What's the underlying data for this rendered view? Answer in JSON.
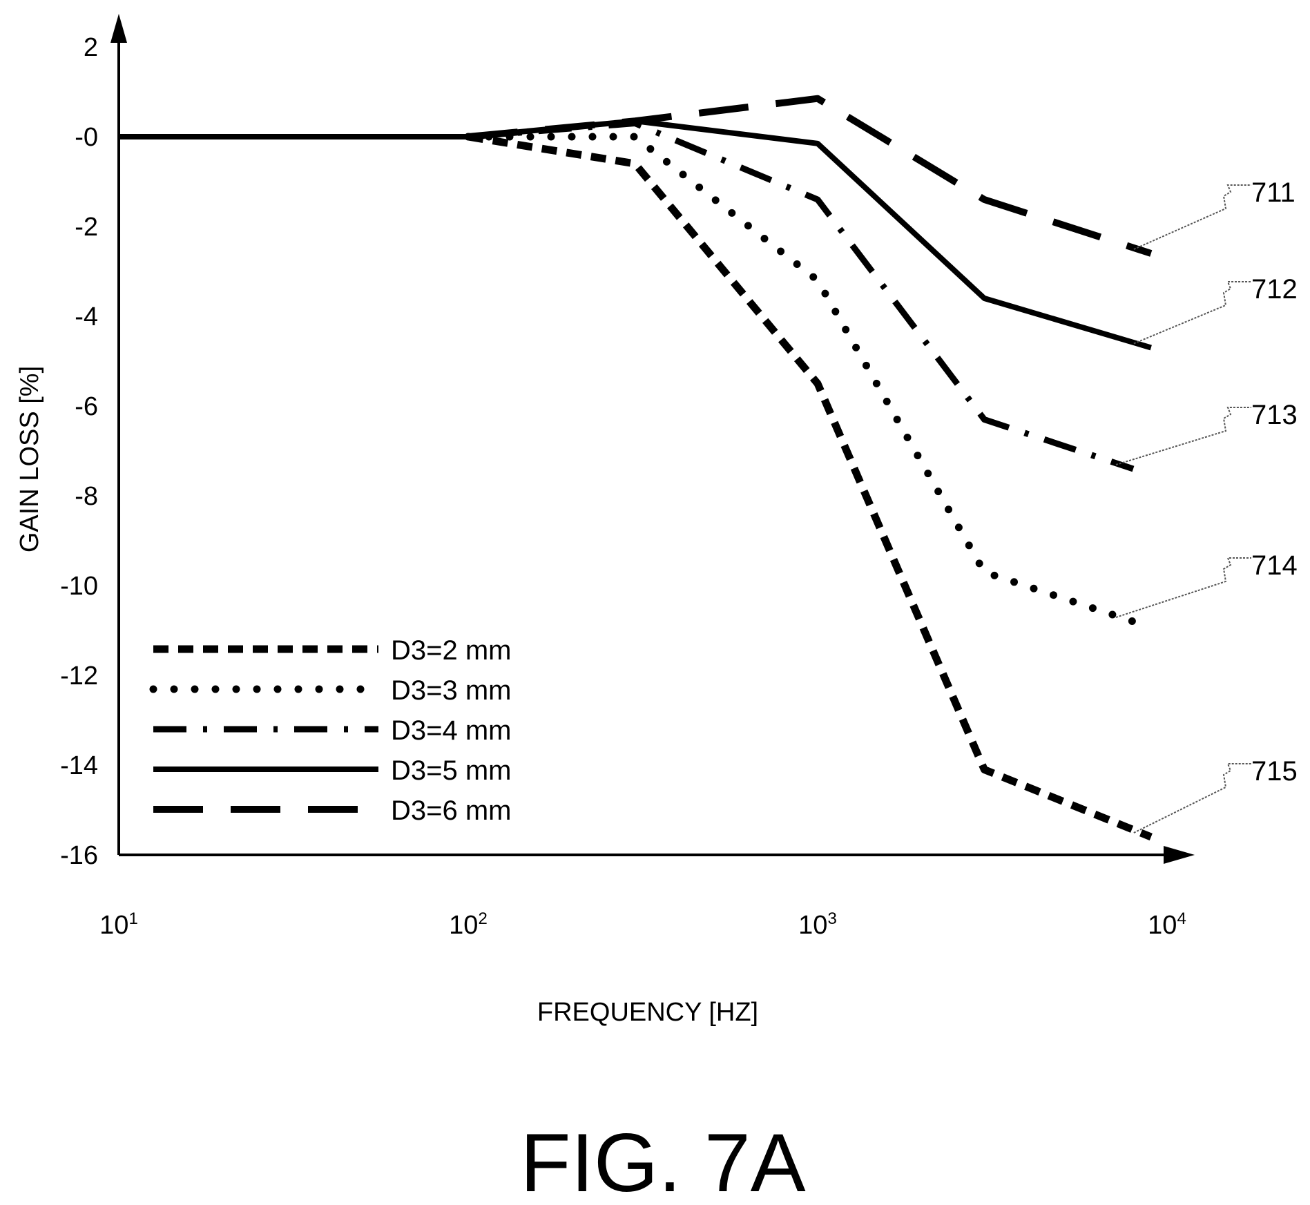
{
  "figure_label": "FIG. 7A",
  "chart_data": {
    "type": "line",
    "title": "",
    "xlabel": "FREQUENCY [HZ]",
    "ylabel": "GAIN LOSS [%]",
    "x_scale": "log",
    "xlim": [
      10,
      10000
    ],
    "ylim": [
      -16,
      2
    ],
    "x_ticks": [
      {
        "base": "10",
        "exp": "1"
      },
      {
        "base": "10",
        "exp": "2"
      },
      {
        "base": "10",
        "exp": "3"
      },
      {
        "base": "10",
        "exp": "4"
      }
    ],
    "y_ticks": [
      "2",
      "-0",
      "-2",
      "-4",
      "-6",
      "-8",
      "-10",
      "-12",
      "-14",
      "-16"
    ],
    "y_tick_values": [
      2,
      0,
      -2,
      -4,
      -6,
      -8,
      -10,
      -12,
      -14,
      -16
    ],
    "grid": false,
    "legend_position": "bottom-left",
    "series": [
      {
        "name": "D3=2 mm",
        "ref": "715",
        "style": "short-dash",
        "x": [
          100,
          300,
          1000,
          3000,
          9000
        ],
        "y": [
          0,
          -0.6,
          -5.5,
          -14.1,
          -15.6
        ]
      },
      {
        "name": "D3=3 mm",
        "ref": "714",
        "style": "dotted",
        "x": [
          100,
          300,
          1000,
          3000,
          8000
        ],
        "y": [
          0,
          0,
          -3.2,
          -9.7,
          -10.8
        ]
      },
      {
        "name": "D3=4 mm",
        "ref": "713",
        "style": "dash-dot",
        "x": [
          100,
          300,
          1000,
          3000,
          8000
        ],
        "y": [
          0,
          0.3,
          -1.4,
          -6.3,
          -7.4
        ]
      },
      {
        "name": "D3=5 mm",
        "ref": "712",
        "style": "solid",
        "x": [
          10,
          100,
          300,
          1000,
          3000,
          9000
        ],
        "y": [
          0,
          0,
          0.35,
          -0.15,
          -3.6,
          -4.7
        ]
      },
      {
        "name": "D3=6 mm",
        "ref": "711",
        "style": "long-dash",
        "x": [
          100,
          300,
          1000,
          3000,
          9000
        ],
        "y": [
          0,
          0.35,
          0.85,
          -1.4,
          -2.6
        ]
      }
    ]
  }
}
